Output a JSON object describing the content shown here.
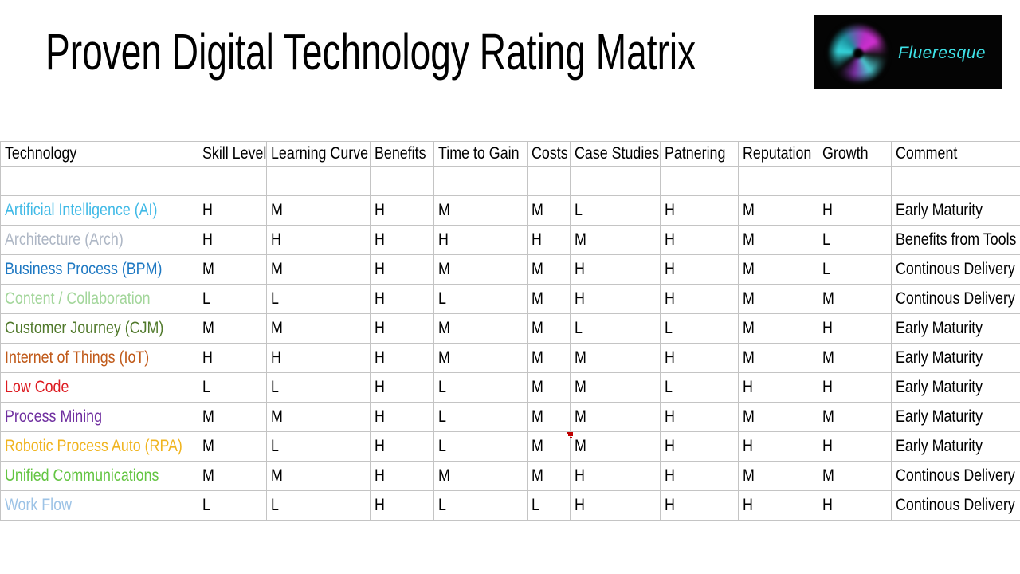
{
  "title": "Proven Digital Technology Rating Matrix",
  "logo": {
    "brand": "Flueresque",
    "text_color": "#3fe3e8",
    "background": "#040404",
    "swirl_colors": [
      "#35d6dc",
      "#b62fc4",
      "#7a2ea0"
    ]
  },
  "table": {
    "grid_color": "#c4c4c4",
    "columns": [
      "Technology",
      "Skill Level",
      "Learning Curve",
      "Benefits",
      "Time to Gain",
      "Costs",
      "Case Studies",
      "Patnering",
      "Reputation",
      "Growth",
      "Comment"
    ],
    "rows": [
      {
        "technology": "Artificial Intelligence (AI)",
        "color": "#3fb9e6",
        "values": [
          "H",
          "M",
          "H",
          "M",
          "M",
          "L",
          "H",
          "M",
          "H"
        ],
        "comment": "Early Maturity"
      },
      {
        "technology": "Architecture (Arch)",
        "color": "#aeb7c5",
        "values": [
          "H",
          "H",
          "H",
          "H",
          "H",
          "M",
          "H",
          "M",
          "L"
        ],
        "comment": "Benefits from Tools"
      },
      {
        "technology": "Business Process (BPM)",
        "color": "#1e78c2",
        "values": [
          "M",
          "M",
          "H",
          "M",
          "M",
          "H",
          "H",
          "M",
          "L"
        ],
        "comment": "Continous Delivery"
      },
      {
        "technology": "Content / Collaboration",
        "color": "#a3d69b",
        "values": [
          "L",
          "L",
          "H",
          "L",
          "M",
          "H",
          "H",
          "M",
          "M"
        ],
        "comment": "Continous Delivery"
      },
      {
        "technology": "Customer Journey (CJM)",
        "color": "#50792b",
        "values": [
          "M",
          "M",
          "H",
          "M",
          "M",
          "L",
          "L",
          "M",
          "H"
        ],
        "comment": "Early Maturity"
      },
      {
        "technology": "Internet of Things (IoT)",
        "color": "#c05a1a",
        "values": [
          "H",
          "H",
          "H",
          "M",
          "M",
          "M",
          "H",
          "M",
          "M"
        ],
        "comment": "Early Maturity"
      },
      {
        "technology": "Low Code",
        "color": "#dd1b21",
        "values": [
          "L",
          "L",
          "H",
          "L",
          "M",
          "M",
          "L",
          "H",
          "H"
        ],
        "comment": "Early Maturity"
      },
      {
        "technology": "Process Mining",
        "color": "#7030a0",
        "values": [
          "M",
          "M",
          "H",
          "L",
          "M",
          "M",
          "H",
          "M",
          "M"
        ],
        "comment": "Early Maturity"
      },
      {
        "technology": "Robotic Process Auto (RPA)",
        "color": "#f0b41f",
        "values": [
          "M",
          "L",
          "H",
          "L",
          "M",
          "M",
          "H",
          "H",
          "H"
        ],
        "comment": "Early Maturity"
      },
      {
        "technology": "Unified Communications",
        "color": "#64c543",
        "values": [
          "M",
          "M",
          "H",
          "M",
          "M",
          "H",
          "H",
          "M",
          "M"
        ],
        "comment": "Continous Delivery"
      },
      {
        "technology": "Work Flow",
        "color": "#9dc3e6",
        "values": [
          "L",
          "L",
          "H",
          "L",
          "L",
          "H",
          "H",
          "H",
          "H"
        ],
        "comment": "Continous Delivery"
      }
    ]
  },
  "annotation": {
    "red_mark_color": "#c00000"
  }
}
